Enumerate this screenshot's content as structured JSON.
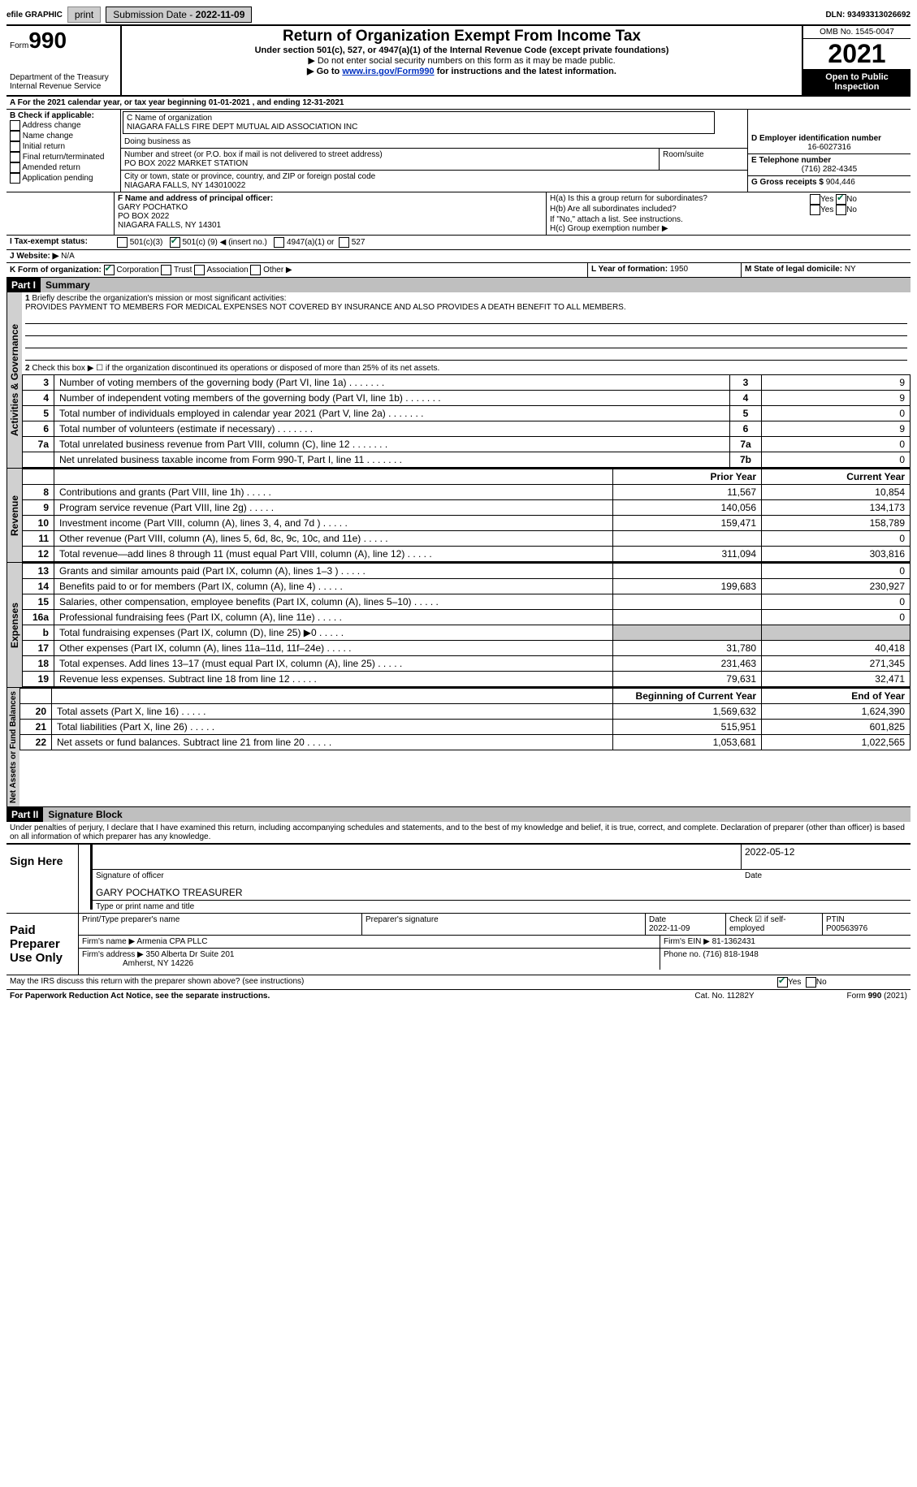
{
  "top": {
    "efile": "efile GRAPHIC",
    "print": "print",
    "subdate_label": "Submission Date -",
    "subdate": "2022-11-09",
    "dln_label": "DLN:",
    "dln": "93493313026692"
  },
  "header": {
    "form": "Form",
    "form_num": "990",
    "dept": "Department of the Treasury",
    "irs": "Internal Revenue Service",
    "title": "Return of Organization Exempt From Income Tax",
    "sub1": "Under section 501(c), 527, or 4947(a)(1) of the Internal Revenue Code (except private foundations)",
    "sub2": "▶ Do not enter social security numbers on this form as it may be made public.",
    "sub3_pre": "▶ Go to ",
    "sub3_link": "www.irs.gov/Form990",
    "sub3_post": " for instructions and the latest information.",
    "omb": "OMB No. 1545-0047",
    "year": "2021",
    "open": "Open to Public Inspection"
  },
  "yearline": {
    "pre": "For the 2021 calendar year, or tax year beginning ",
    "begin": "01-01-2021",
    "mid": " , and ending ",
    "end": "12-31-2021"
  },
  "box_b": {
    "label": "B Check if applicable:",
    "items": [
      "Address change",
      "Name change",
      "Initial return",
      "Final return/terminated",
      "Amended return",
      "Application pending"
    ]
  },
  "box_c": {
    "label": "C Name of organization",
    "name": "NIAGARA FALLS FIRE DEPT MUTUAL AID ASSOCIATION INC",
    "dba": "Doing business as",
    "street_label": "Number and street (or P.O. box if mail is not delivered to street address)",
    "street": "PO BOX 2022 MARKET STATION",
    "room": "Room/suite",
    "city_label": "City or town, state or province, country, and ZIP or foreign postal code",
    "city": "NIAGARA FALLS, NY  143010022"
  },
  "box_d": {
    "label": "D Employer identification number",
    "ein": "16-6027316"
  },
  "box_e": {
    "label": "E Telephone number",
    "phone": "(716) 282-4345"
  },
  "box_g": {
    "label": "G Gross receipts $",
    "val": "904,446"
  },
  "box_f": {
    "label": "F  Name and address of principal officer:",
    "l1": "GARY POCHATKO",
    "l2": "PO BOX 2022",
    "l3": "NIAGARA FALLS, NY  14301"
  },
  "box_h": {
    "ha": "H(a)  Is this a group return for subordinates?",
    "hb": "H(b)  Are all subordinates included?",
    "hb_note": "If \"No,\" attach a list. See instructions.",
    "hc": "H(c)  Group exemption number ▶",
    "yes": "Yes",
    "no": "No"
  },
  "box_i": {
    "label": "I  Tax-exempt status:",
    "o1": "501(c)(3)",
    "o2_pre": "501(c) (",
    "o2_num": "9",
    "o2_post": ") ◀ (insert no.)",
    "o3": "4947(a)(1) or",
    "o4": "527"
  },
  "box_j": {
    "label": "J  Website: ▶",
    "val": "N/A"
  },
  "box_k": {
    "label": "K Form of organization:",
    "opts": [
      "Corporation",
      "Trust",
      "Association",
      "Other ▶"
    ]
  },
  "box_l": {
    "label": "L Year of formation:",
    "val": "1950"
  },
  "box_m": {
    "label": "M State of legal domicile:",
    "val": "NY"
  },
  "part1": {
    "tag": "Part I",
    "title": "Summary",
    "q1": "Briefly describe the organization's mission or most significant activities:",
    "q1v": "PROVIDES PAYMENT TO MEMBERS FOR MEDICAL EXPENSES NOT COVERED BY INSURANCE AND ALSO PROVIDES A DEATH BENEFIT TO ALL MEMBERS.",
    "q2": "Check this box ▶ ☐ if the organization discontinued its operations or disposed of more than 25% of its net assets.",
    "rows_top": [
      {
        "n": "3",
        "t": "Number of voting members of the governing body (Part VI, line 1a)",
        "b": "3",
        "v": "9"
      },
      {
        "n": "4",
        "t": "Number of independent voting members of the governing body (Part VI, line 1b)",
        "b": "4",
        "v": "9"
      },
      {
        "n": "5",
        "t": "Total number of individuals employed in calendar year 2021 (Part V, line 2a)",
        "b": "5",
        "v": "0"
      },
      {
        "n": "6",
        "t": "Total number of volunteers (estimate if necessary)",
        "b": "6",
        "v": "9"
      },
      {
        "n": "7a",
        "t": "Total unrelated business revenue from Part VIII, column (C), line 12",
        "b": "7a",
        "v": "0"
      },
      {
        "n": "",
        "t": "Net unrelated business taxable income from Form 990-T, Part I, line 11",
        "b": "7b",
        "v": "0"
      }
    ],
    "col_headers": {
      "prior": "Prior Year",
      "curr": "Current Year"
    },
    "revenue": [
      {
        "n": "8",
        "t": "Contributions and grants (Part VIII, line 1h)",
        "p": "11,567",
        "c": "10,854"
      },
      {
        "n": "9",
        "t": "Program service revenue (Part VIII, line 2g)",
        "p": "140,056",
        "c": "134,173"
      },
      {
        "n": "10",
        "t": "Investment income (Part VIII, column (A), lines 3, 4, and 7d )",
        "p": "159,471",
        "c": "158,789"
      },
      {
        "n": "11",
        "t": "Other revenue (Part VIII, column (A), lines 5, 6d, 8c, 9c, 10c, and 11e)",
        "p": "",
        "c": "0"
      },
      {
        "n": "12",
        "t": "Total revenue—add lines 8 through 11 (must equal Part VIII, column (A), line 12)",
        "p": "311,094",
        "c": "303,816"
      }
    ],
    "expenses": [
      {
        "n": "13",
        "t": "Grants and similar amounts paid (Part IX, column (A), lines 1–3 )",
        "p": "",
        "c": "0"
      },
      {
        "n": "14",
        "t": "Benefits paid to or for members (Part IX, column (A), line 4)",
        "p": "199,683",
        "c": "230,927"
      },
      {
        "n": "15",
        "t": "Salaries, other compensation, employee benefits (Part IX, column (A), lines 5–10)",
        "p": "",
        "c": "0"
      },
      {
        "n": "16a",
        "t": "Professional fundraising fees (Part IX, column (A), line 11e)",
        "p": "",
        "c": "0"
      },
      {
        "n": "b",
        "t": "Total fundraising expenses (Part IX, column (D), line 25) ▶0",
        "p": "GRAY",
        "c": "GRAY"
      },
      {
        "n": "17",
        "t": "Other expenses (Part IX, column (A), lines 11a–11d, 11f–24e)",
        "p": "31,780",
        "c": "40,418"
      },
      {
        "n": "18",
        "t": "Total expenses. Add lines 13–17 (must equal Part IX, column (A), line 25)",
        "p": "231,463",
        "c": "271,345"
      },
      {
        "n": "19",
        "t": "Revenue less expenses. Subtract line 18 from line 12",
        "p": "79,631",
        "c": "32,471"
      }
    ],
    "col_headers2": {
      "begin": "Beginning of Current Year",
      "end": "End of Year"
    },
    "netassets": [
      {
        "n": "20",
        "t": "Total assets (Part X, line 16)",
        "p": "1,569,632",
        "c": "1,624,390"
      },
      {
        "n": "21",
        "t": "Total liabilities (Part X, line 26)",
        "p": "515,951",
        "c": "601,825"
      },
      {
        "n": "22",
        "t": "Net assets or fund balances. Subtract line 21 from line 20",
        "p": "1,053,681",
        "c": "1,022,565"
      }
    ],
    "side_labels": {
      "ag": "Activities & Governance",
      "rev": "Revenue",
      "exp": "Expenses",
      "na": "Net Assets or Fund Balances"
    }
  },
  "part2": {
    "tag": "Part II",
    "title": "Signature Block",
    "decl": "Under penalties of perjury, I declare that I have examined this return, including accompanying schedules and statements, and to the best of my knowledge and belief, it is true, correct, and complete. Declaration of preparer (other than officer) is based on all information of which preparer has any knowledge.",
    "sign_here": "Sign Here",
    "sig_officer": "Signature of officer",
    "sig_date": "2022-05-12",
    "date_label": "Date",
    "type_name": "GARY POCHATKO  TREASURER",
    "type_label": "Type or print name and title",
    "paid": "Paid Preparer Use Only",
    "prep_name_label": "Print/Type preparer's name",
    "prep_sig_label": "Preparer's signature",
    "prep_date": "2022-11-09",
    "check_self": "Check ☑ if self-employed",
    "ptin_label": "PTIN",
    "ptin": "P00563976",
    "firm_name_label": "Firm's name    ▶",
    "firm_name": "Armenia CPA PLLC",
    "firm_ein_label": "Firm's EIN ▶",
    "firm_ein": "81-1362431",
    "firm_addr_label": "Firm's address ▶",
    "firm_addr1": "350 Alberta Dr Suite 201",
    "firm_addr2": "Amherst, NY  14226",
    "phone_label": "Phone no.",
    "phone": "(716) 818-1948",
    "discuss": "May the IRS discuss this return with the preparer shown above? (see instructions)",
    "pra": "For Paperwork Reduction Act Notice, see the separate instructions.",
    "cat": "Cat. No. 11282Y",
    "form_foot": "Form 990 (2021)"
  }
}
